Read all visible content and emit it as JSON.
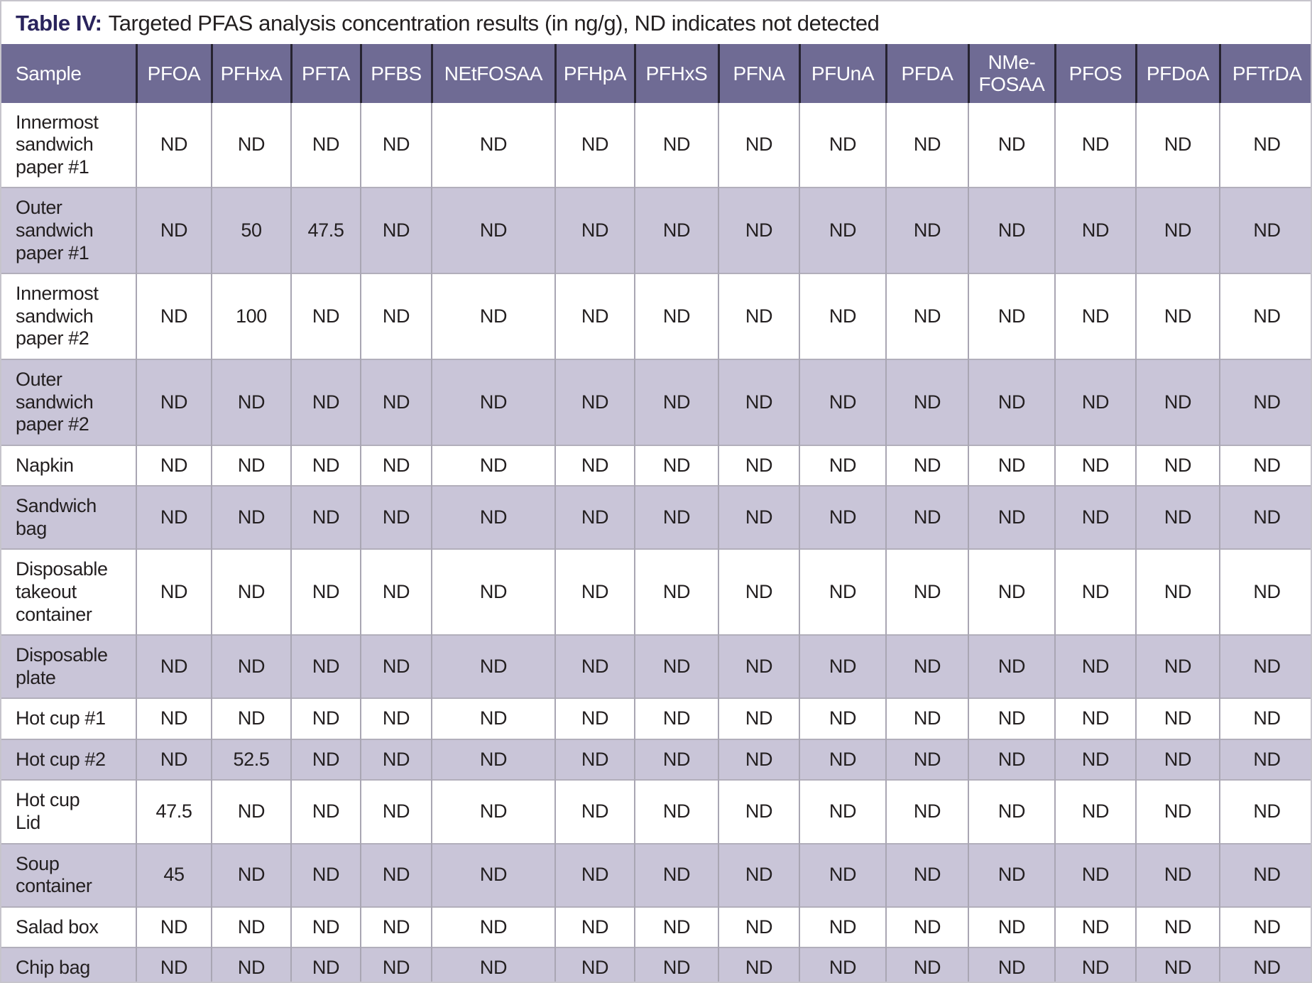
{
  "caption": {
    "label": "Table IV:",
    "text": "Targeted PFAS analysis concentration results (in ng/g), ND indicates not detected"
  },
  "colors": {
    "header_bg": "#6F6B94",
    "header_text": "#FFFFFF",
    "stripe_bg": "#C9C5D8",
    "row_bg": "#FFFFFF",
    "caption_accent": "#29235C",
    "text": "#231F20",
    "header_divider": "#262330",
    "cell_divider": "#A9A6B3",
    "row_divider": "#B2AFBB",
    "table_bottom_border": "#3A3745",
    "panel_border": "#C6C4CC"
  },
  "table": {
    "columns": [
      "Sample",
      "PFOA",
      "PFHxA",
      "PFTA",
      "PFBS",
      "NEtFOSAA",
      "PFHpA",
      "PFHxS",
      "PFNA",
      "PFUnA",
      "PFDA",
      "NMe-FOSAA",
      "PFOS",
      "PFDoA",
      "PFTrDA"
    ],
    "not_detected_code": "ND",
    "rows": [
      {
        "sample": "Innermost\nsandwich\npaper #1",
        "values": [
          "ND",
          "ND",
          "ND",
          "ND",
          "ND",
          "ND",
          "ND",
          "ND",
          "ND",
          "ND",
          "ND",
          "ND",
          "ND",
          "ND"
        ]
      },
      {
        "sample": "Outer\nsandwich\npaper #1",
        "values": [
          "ND",
          "50",
          "47.5",
          "ND",
          "ND",
          "ND",
          "ND",
          "ND",
          "ND",
          "ND",
          "ND",
          "ND",
          "ND",
          "ND"
        ]
      },
      {
        "sample": "Innermost\nsandwich\npaper #2",
        "values": [
          "ND",
          "100",
          "ND",
          "ND",
          "ND",
          "ND",
          "ND",
          "ND",
          "ND",
          "ND",
          "ND",
          "ND",
          "ND",
          "ND"
        ]
      },
      {
        "sample": "Outer\nsandwich\npaper #2",
        "values": [
          "ND",
          "ND",
          "ND",
          "ND",
          "ND",
          "ND",
          "ND",
          "ND",
          "ND",
          "ND",
          "ND",
          "ND",
          "ND",
          "ND"
        ]
      },
      {
        "sample": "Napkin",
        "values": [
          "ND",
          "ND",
          "ND",
          "ND",
          "ND",
          "ND",
          "ND",
          "ND",
          "ND",
          "ND",
          "ND",
          "ND",
          "ND",
          "ND"
        ]
      },
      {
        "sample": "Sandwich\nbag",
        "values": [
          "ND",
          "ND",
          "ND",
          "ND",
          "ND",
          "ND",
          "ND",
          "ND",
          "ND",
          "ND",
          "ND",
          "ND",
          "ND",
          "ND"
        ]
      },
      {
        "sample": "Disposable\ntakeout\ncontainer",
        "values": [
          "ND",
          "ND",
          "ND",
          "ND",
          "ND",
          "ND",
          "ND",
          "ND",
          "ND",
          "ND",
          "ND",
          "ND",
          "ND",
          "ND"
        ]
      },
      {
        "sample": "Disposable\nplate",
        "values": [
          "ND",
          "ND",
          "ND",
          "ND",
          "ND",
          "ND",
          "ND",
          "ND",
          "ND",
          "ND",
          "ND",
          "ND",
          "ND",
          "ND"
        ]
      },
      {
        "sample": "Hot cup #1",
        "values": [
          "ND",
          "ND",
          "ND",
          "ND",
          "ND",
          "ND",
          "ND",
          "ND",
          "ND",
          "ND",
          "ND",
          "ND",
          "ND",
          "ND"
        ]
      },
      {
        "sample": "Hot cup #2",
        "values": [
          "ND",
          "52.5",
          "ND",
          "ND",
          "ND",
          "ND",
          "ND",
          "ND",
          "ND",
          "ND",
          "ND",
          "ND",
          "ND",
          "ND"
        ]
      },
      {
        "sample": "Hot cup\nLid",
        "values": [
          "47.5",
          "ND",
          "ND",
          "ND",
          "ND",
          "ND",
          "ND",
          "ND",
          "ND",
          "ND",
          "ND",
          "ND",
          "ND",
          "ND"
        ]
      },
      {
        "sample": "Soup\ncontainer",
        "values": [
          "45",
          "ND",
          "ND",
          "ND",
          "ND",
          "ND",
          "ND",
          "ND",
          "ND",
          "ND",
          "ND",
          "ND",
          "ND",
          "ND"
        ]
      },
      {
        "sample": "Salad box",
        "values": [
          "ND",
          "ND",
          "ND",
          "ND",
          "ND",
          "ND",
          "ND",
          "ND",
          "ND",
          "ND",
          "ND",
          "ND",
          "ND",
          "ND"
        ]
      },
      {
        "sample": "Chip bag",
        "values": [
          "ND",
          "ND",
          "ND",
          "ND",
          "ND",
          "ND",
          "ND",
          "ND",
          "ND",
          "ND",
          "ND",
          "ND",
          "ND",
          "ND"
        ]
      }
    ]
  }
}
